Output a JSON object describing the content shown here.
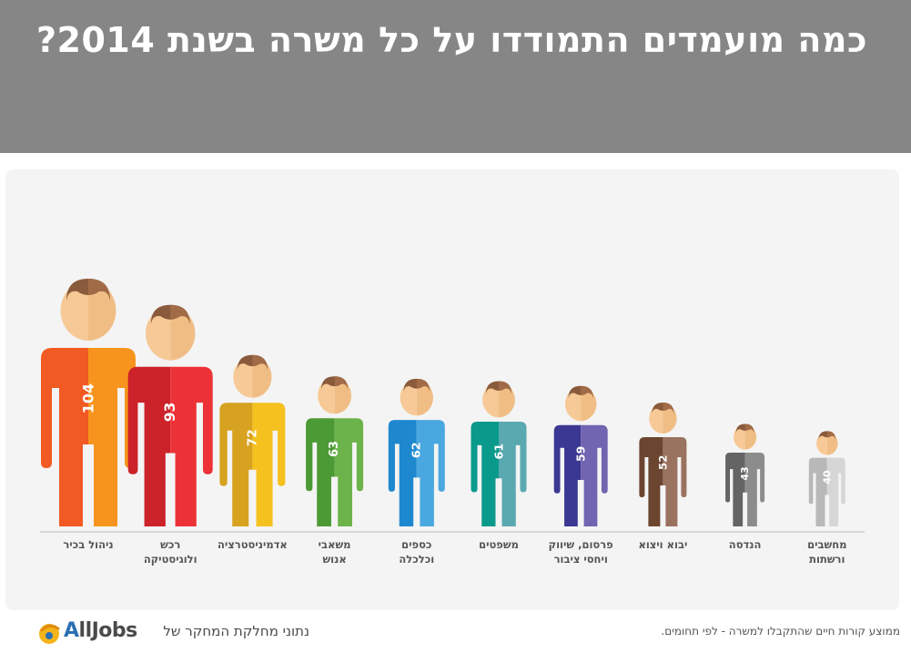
{
  "header": {
    "title": "כמה מועמדים התמודדו על כל משרה בשנת 2014?"
  },
  "chart_data": {
    "type": "bar",
    "categories": [
      [
        "ניהול בכיר"
      ],
      [
        "רכש",
        "ולוגיסטיקה"
      ],
      [
        "אדמיניסטרציה"
      ],
      [
        "משאבי",
        "אנוש"
      ],
      [
        "כספים",
        "וכלכלה"
      ],
      [
        "משפטים"
      ],
      [
        "פרסום, שיווק",
        "ויחסי ציבור"
      ],
      [
        "יבוא ויצוא"
      ],
      [
        "הנדסה"
      ],
      [
        "מחשבים",
        "ורשתות"
      ]
    ],
    "values": [
      104,
      93,
      72,
      63,
      62,
      61,
      59,
      52,
      43,
      40
    ],
    "colors": [
      [
        "#f15a22",
        "#f7941d"
      ],
      [
        "#cc2229",
        "#ed3237"
      ],
      [
        "#d7a21f",
        "#f4c11f"
      ],
      [
        "#4c9a35",
        "#6db34b"
      ],
      [
        "#1e88cf",
        "#4aa8e0"
      ],
      [
        "#0a9a8c",
        "#5aa8b0"
      ],
      [
        "#3b3894",
        "#7164b0"
      ],
      [
        "#6b4530",
        "#9a7260"
      ],
      [
        "#646464",
        "#8c8c8c"
      ],
      [
        "#b8b8b8",
        "#d6d6d6"
      ]
    ],
    "legend": "none"
  },
  "footer": {
    "logo_text": "AllJobs",
    "source": "נתוני מחלקת המחקר של",
    "note": "ממוצע קורות חיים שהתקבלו למשרה - לפי תחומים."
  }
}
